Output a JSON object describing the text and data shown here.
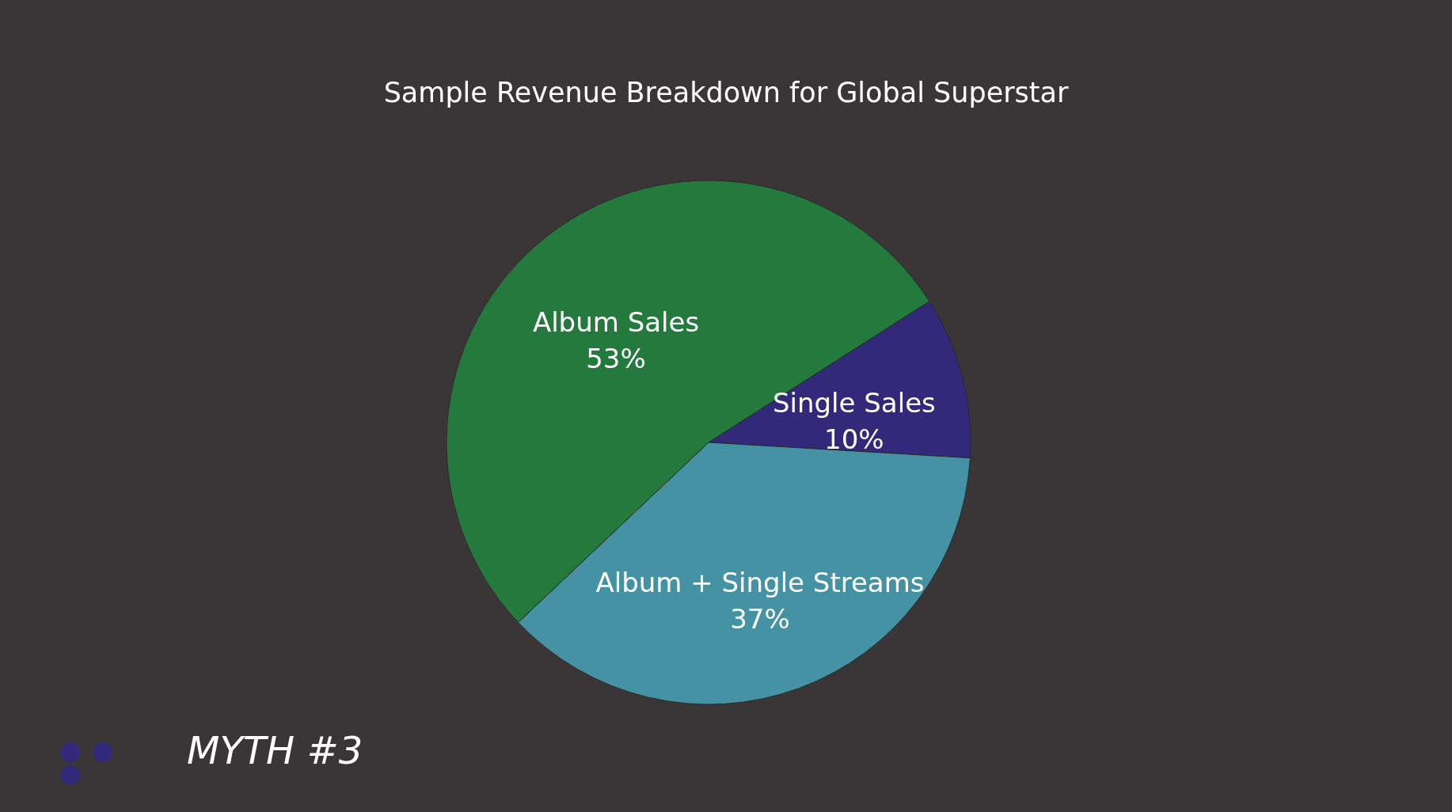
{
  "chart_data": {
    "type": "pie",
    "title": "Sample Revenue Breakdown for Global Superstar",
    "categories": [
      "Single Sales",
      "Album + Single Streams",
      "Album Sales"
    ],
    "values": [
      10,
      37,
      53
    ],
    "colors": [
      "#32297a",
      "#4492a3",
      "#237a3c"
    ],
    "value_labels": [
      "10%",
      "37%",
      "53%"
    ],
    "annotations": [
      "MYTH #3"
    ]
  }
}
